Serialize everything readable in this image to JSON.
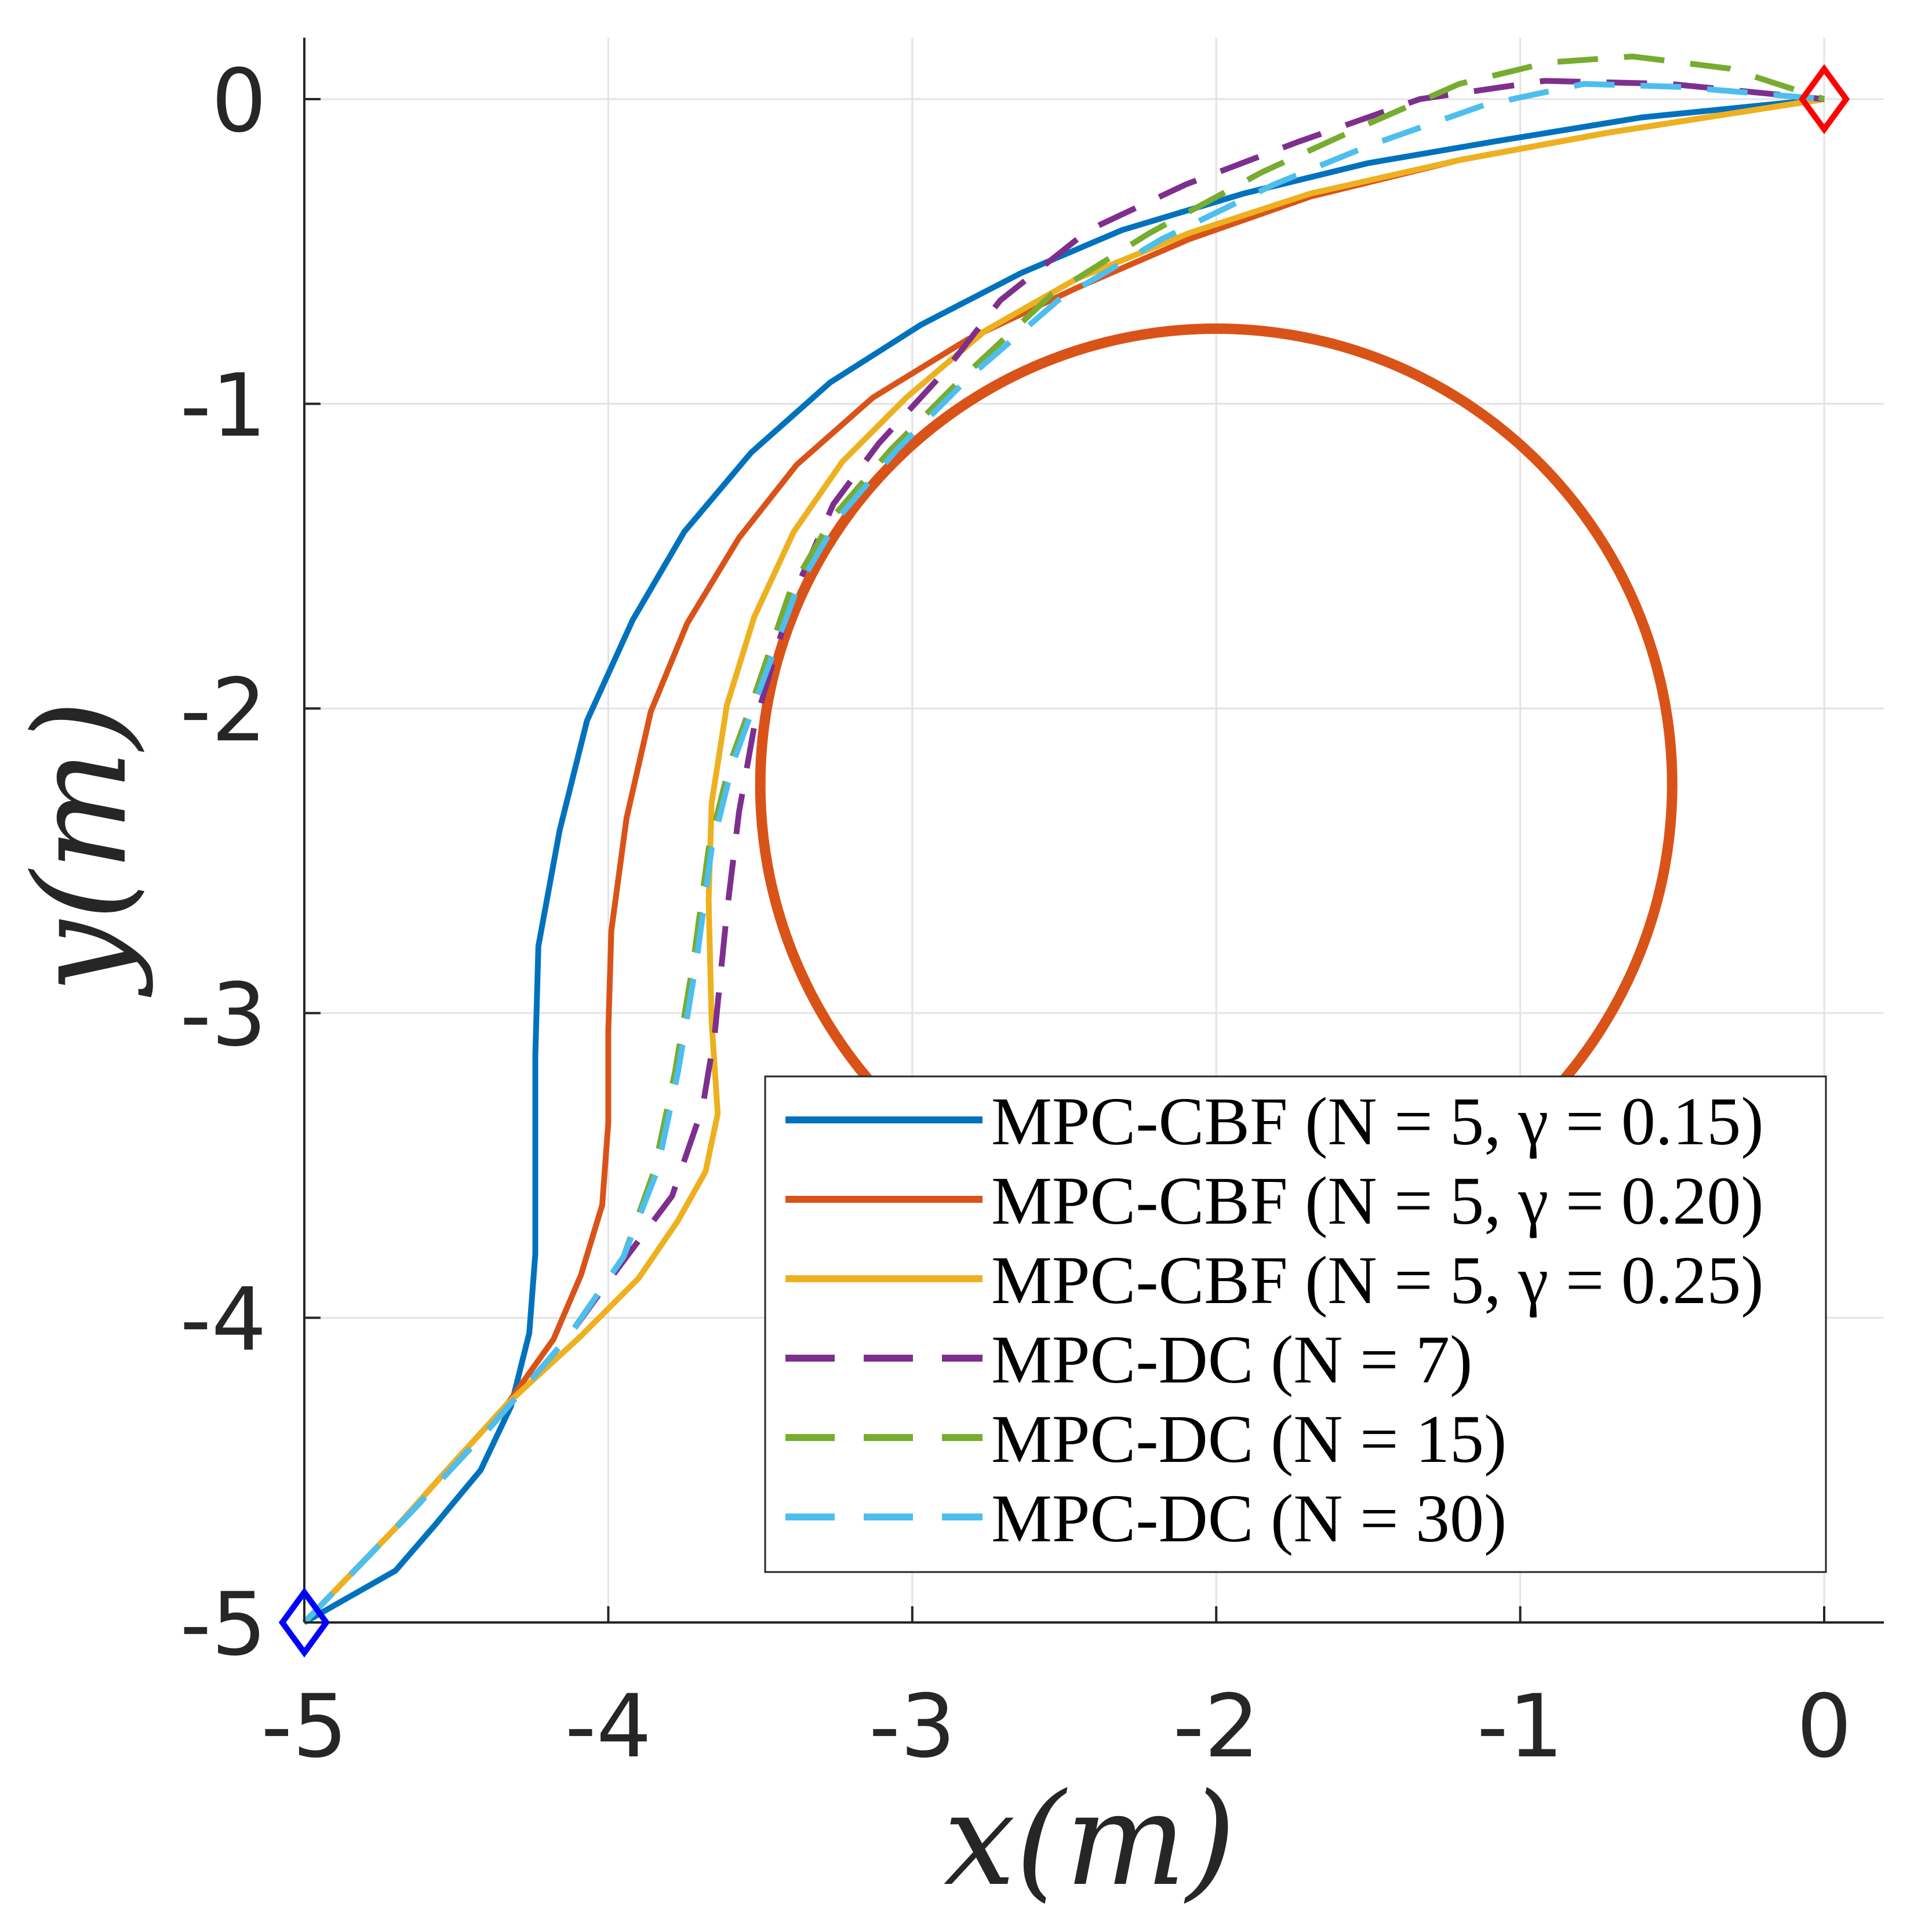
{
  "chart_data": {
    "type": "line",
    "title": "",
    "xlabel": "x(m)",
    "ylabel": "y(m)",
    "xlim": [
      -5,
      0.1
    ],
    "ylim": [
      -5,
      0.2
    ],
    "xticks": [
      -5,
      -4,
      -3,
      -2,
      -1,
      0
    ],
    "yticks": [
      0,
      -1,
      -2,
      -3,
      -4,
      -5
    ],
    "xtick_labels": [
      "-5",
      "-4",
      "-3",
      "-2",
      "-1",
      "0"
    ],
    "ytick_labels": [
      "0",
      "-1",
      "-2",
      "-3",
      "-4",
      "-5"
    ],
    "grid": true,
    "legend_position": "bottom-right",
    "obstacle": {
      "type": "circle",
      "center": [
        -2,
        -2.25
      ],
      "radius": 1.5,
      "color": "#D95319"
    },
    "start": {
      "x": -5,
      "y": -5,
      "marker": "diamond",
      "color": "#0000FF"
    },
    "goal": {
      "x": 0,
      "y": 0,
      "marker": "diamond",
      "color": "#FF0000"
    },
    "series": [
      {
        "name": "MPC-CBF (N = 5, γ = 0.15)",
        "color": "#0072BD",
        "style": "solid",
        "x": [
          -5,
          -4.7,
          -4.57,
          -4.42,
          -4.32,
          -4.26,
          -4.24,
          -4.24,
          -4.23,
          -4.16,
          -4.07,
          -3.92,
          -3.75,
          -3.53,
          -3.27,
          -2.97,
          -2.64,
          -2.31,
          -1.91,
          -1.5,
          -1.09,
          -0.6,
          0
        ],
        "y": [
          -5,
          -4.83,
          -4.68,
          -4.5,
          -4.29,
          -4.05,
          -3.79,
          -3.14,
          -2.78,
          -2.4,
          -2.04,
          -1.71,
          -1.42,
          -1.16,
          -0.93,
          -0.74,
          -0.57,
          -0.43,
          -0.31,
          -0.21,
          -0.14,
          -0.06,
          0
        ]
      },
      {
        "name": "MPC-CBF (N = 5, γ = 0.20)",
        "color": "#D95319",
        "style": "solid",
        "x": [
          -5,
          -4.7,
          -4.54,
          -4.33,
          -4.18,
          -4.09,
          -4.02,
          -4.0,
          -4.0,
          -3.99,
          -3.94,
          -3.86,
          -3.74,
          -3.57,
          -3.38,
          -3.13,
          -2.82,
          -2.46,
          -2.09,
          -1.69,
          -1.2,
          -0.71,
          0
        ],
        "y": [
          -5,
          -4.69,
          -4.51,
          -4.28,
          -4.07,
          -3.86,
          -3.63,
          -3.36,
          -3.06,
          -2.73,
          -2.36,
          -2.01,
          -1.72,
          -1.44,
          -1.2,
          -0.98,
          -0.79,
          -0.62,
          -0.46,
          -0.32,
          -0.2,
          -0.11,
          0
        ]
      },
      {
        "name": "MPC-CBF (N = 5, γ = 0.25)",
        "color": "#EDB120",
        "style": "solid",
        "x": [
          -5,
          -4.7,
          -4.54,
          -4.33,
          -4.09,
          -3.9,
          -3.77,
          -3.68,
          -3.64,
          -3.66,
          -3.67,
          -3.66,
          -3.61,
          -3.52,
          -3.39,
          -3.23,
          -3.02,
          -2.76,
          -2.46,
          -2.09,
          -1.69,
          -1.2,
          -0.71,
          0
        ],
        "y": [
          -5,
          -4.69,
          -4.51,
          -4.28,
          -4.06,
          -3.87,
          -3.68,
          -3.52,
          -3.33,
          -3.03,
          -2.63,
          -2.31,
          -1.99,
          -1.7,
          -1.42,
          -1.19,
          -0.98,
          -0.76,
          -0.59,
          -0.44,
          -0.31,
          -0.2,
          -0.11,
          0
        ]
      },
      {
        "name": "MPC-DC (N = 7)",
        "color": "#7E2F8E",
        "style": "dashed",
        "x": [
          -5,
          -4.66,
          -4.38,
          -4.13,
          -3.97,
          -3.79,
          -3.69,
          -3.65,
          -3.61,
          -3.57,
          -3.52,
          -3.4,
          -3.26,
          -3.11,
          -2.89,
          -2.71,
          -2.42,
          -2.1,
          -1.73,
          -1.33,
          -0.92,
          -0.51,
          0
        ],
        "y": [
          -5,
          -4.65,
          -4.35,
          -4.06,
          -3.84,
          -3.6,
          -3.31,
          -3.07,
          -2.67,
          -2.34,
          -2.06,
          -1.65,
          -1.33,
          -1.13,
          -0.89,
          -0.66,
          -0.43,
          -0.28,
          -0.14,
          0.0,
          0.06,
          0.05,
          0
        ]
      },
      {
        "name": "MPC-DC (N = 15)",
        "color": "#77AC30",
        "style": "dashed",
        "x": [
          -5,
          -4.66,
          -4.38,
          -4.13,
          -3.95,
          -3.85,
          -3.78,
          -3.72,
          -3.67,
          -3.6,
          -3.52,
          -3.4,
          -3.26,
          -3.07,
          -2.83,
          -2.54,
          -2.22,
          -1.85,
          -1.52,
          -1.2,
          -0.91,
          -0.63,
          -0.31,
          0
        ],
        "y": [
          -5,
          -4.65,
          -4.35,
          -4.06,
          -3.8,
          -3.52,
          -3.19,
          -2.83,
          -2.46,
          -2.18,
          -1.96,
          -1.61,
          -1.37,
          -1.15,
          -0.91,
          -0.64,
          -0.44,
          -0.24,
          -0.09,
          0.05,
          0.12,
          0.14,
          0.1,
          0
        ]
      },
      {
        "name": "MPC-DC (N = 30)",
        "color": "#4DBEEE",
        "style": "dashed",
        "x": [
          -5,
          -4.66,
          -4.38,
          -4.13,
          -3.95,
          -3.84,
          -3.77,
          -3.71,
          -3.66,
          -3.59,
          -3.51,
          -3.38,
          -3.24,
          -3.05,
          -2.81,
          -2.52,
          -2.18,
          -1.81,
          -1.49,
          -1.12,
          -0.79,
          -0.47,
          0
        ],
        "y": [
          -5,
          -4.65,
          -4.35,
          -4.06,
          -3.8,
          -3.52,
          -3.19,
          -2.83,
          -2.46,
          -2.18,
          -1.96,
          -1.61,
          -1.37,
          -1.15,
          -0.91,
          -0.66,
          -0.46,
          -0.28,
          -0.15,
          -0.02,
          0.05,
          0.04,
          0
        ]
      }
    ]
  }
}
